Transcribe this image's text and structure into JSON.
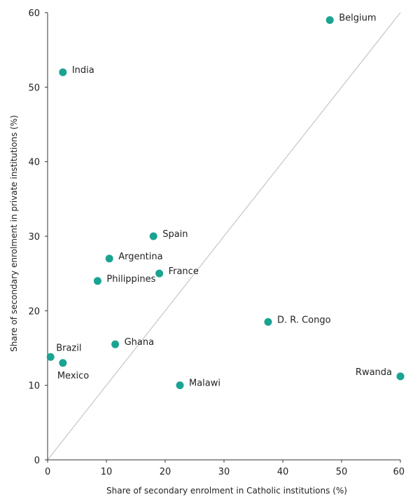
{
  "chart_data": {
    "type": "scatter",
    "xlabel": "Share of secondary enrolment in Catholic institutions (%)",
    "ylabel": "Share of secondary enrolment in private institutions (%)",
    "xlim": [
      0,
      60
    ],
    "ylim": [
      0,
      60
    ],
    "xticks": [
      "0",
      "10",
      "20",
      "30",
      "40",
      "50",
      "60"
    ],
    "yticks": [
      "0",
      "10",
      "20",
      "30",
      "40",
      "50",
      "60"
    ],
    "grid": false,
    "reference_line": "y = x",
    "point_color": "#1aa391",
    "points": [
      {
        "label": "Belgium",
        "x": 48,
        "y": 59,
        "label_pos": "right"
      },
      {
        "label": "India",
        "x": 2.6,
        "y": 52,
        "label_pos": "right"
      },
      {
        "label": "Spain",
        "x": 18,
        "y": 30,
        "label_pos": "right"
      },
      {
        "label": "Argentina",
        "x": 10.5,
        "y": 27,
        "label_pos": "right"
      },
      {
        "label": "France",
        "x": 19,
        "y": 25,
        "label_pos": "right"
      },
      {
        "label": "Philippines",
        "x": 8.5,
        "y": 24,
        "label_pos": "right"
      },
      {
        "label": "D. R. Congo",
        "x": 37.5,
        "y": 18.5,
        "label_pos": "right"
      },
      {
        "label": "Ghana",
        "x": 11.5,
        "y": 15.5,
        "label_pos": "right"
      },
      {
        "label": "Brazil",
        "x": 0.5,
        "y": 13.8,
        "label_pos": "above-right"
      },
      {
        "label": "Mexico",
        "x": 2.6,
        "y": 13,
        "label_pos": "below-right"
      },
      {
        "label": "Malawi",
        "x": 22.5,
        "y": 10,
        "label_pos": "right"
      },
      {
        "label": "Rwanda",
        "x": 60,
        "y": 11.2,
        "label_pos": "left"
      }
    ]
  }
}
